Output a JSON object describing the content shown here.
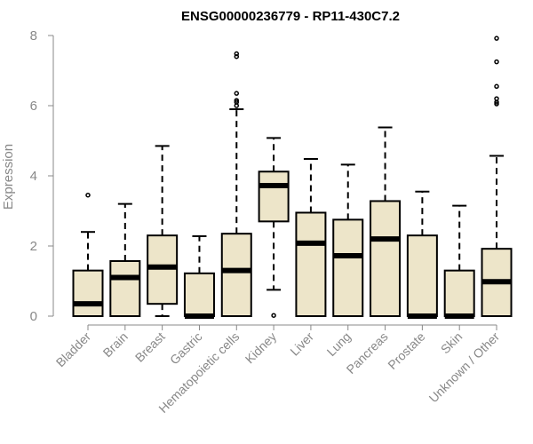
{
  "chart_data": {
    "type": "box",
    "title": "ENSG00000236779 - RP11-430C7.2",
    "ylabel": "Expression",
    "ylim": [
      0,
      8
    ],
    "yticks": [
      0,
      2,
      4,
      6,
      8
    ],
    "box_fill": "#ede5c9",
    "categories": [
      "Bladder",
      "Brain",
      "Breast",
      "Gastric",
      "Hematopoietic cells",
      "Kidney",
      "Liver",
      "Lung",
      "Pancreas",
      "Prostate",
      "Skin",
      "Unknown / Other"
    ],
    "boxes": [
      {
        "q1": 0.0,
        "median": 0.35,
        "q3": 1.3,
        "whisker_low": 0.0,
        "whisker_high": 2.4,
        "outliers": [
          3.45
        ]
      },
      {
        "q1": 0.0,
        "median": 1.1,
        "q3": 1.57,
        "whisker_low": 0.0,
        "whisker_high": 3.2,
        "outliers": []
      },
      {
        "q1": 0.35,
        "median": 1.4,
        "q3": 2.3,
        "whisker_low": 0.0,
        "whisker_high": 4.85,
        "outliers": []
      },
      {
        "q1": 0.0,
        "median": 0.0,
        "q3": 1.22,
        "whisker_low": 0.0,
        "whisker_high": 2.28,
        "outliers": []
      },
      {
        "q1": 0.0,
        "median": 1.3,
        "q3": 2.35,
        "whisker_low": 0.0,
        "whisker_high": 5.9,
        "outliers": [
          6.0,
          6.1,
          6.15,
          6.35,
          7.4,
          7.48
        ]
      },
      {
        "q1": 2.7,
        "median": 3.72,
        "q3": 4.12,
        "whisker_low": 0.75,
        "whisker_high": 5.08,
        "outliers": [
          0.02
        ]
      },
      {
        "q1": 0.0,
        "median": 2.08,
        "q3": 2.95,
        "whisker_low": 0.0,
        "whisker_high": 4.48,
        "outliers": []
      },
      {
        "q1": 0.0,
        "median": 1.72,
        "q3": 2.75,
        "whisker_low": 0.0,
        "whisker_high": 4.32,
        "outliers": []
      },
      {
        "q1": 0.0,
        "median": 2.2,
        "q3": 3.28,
        "whisker_low": 0.0,
        "whisker_high": 5.38,
        "outliers": []
      },
      {
        "q1": 0.0,
        "median": 0.0,
        "q3": 2.3,
        "whisker_low": 0.0,
        "whisker_high": 3.55,
        "outliers": []
      },
      {
        "q1": 0.0,
        "median": 0.0,
        "q3": 1.3,
        "whisker_low": 0.0,
        "whisker_high": 3.15,
        "outliers": []
      },
      {
        "q1": 0.0,
        "median": 0.98,
        "q3": 1.92,
        "whisker_low": 0.0,
        "whisker_high": 4.57,
        "outliers": [
          6.05,
          6.1,
          6.2,
          6.55,
          7.25,
          7.92
        ]
      }
    ]
  }
}
